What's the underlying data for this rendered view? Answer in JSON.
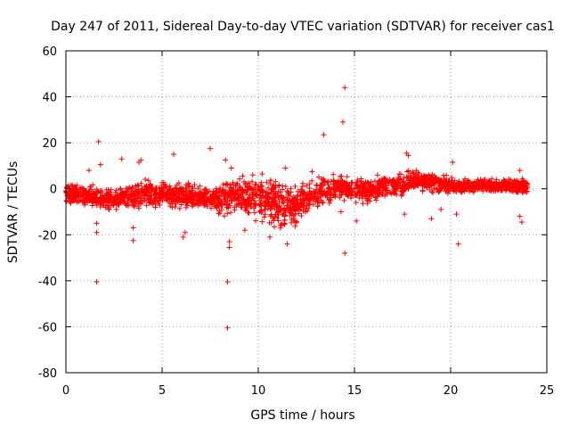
{
  "chart_data": {
    "type": "scatter",
    "title": "Day 247 of 2011, Sidereal Day-to-day VTEC variation (SDTVAR) for receiver cas1",
    "xlabel": "GPS time / hours",
    "ylabel": "SDTVAR / TECUs",
    "xlim": [
      0,
      25
    ],
    "ylim": [
      -80,
      60
    ],
    "x_ticks": [
      0,
      5,
      10,
      15,
      20,
      25
    ],
    "y_ticks": [
      -80,
      -60,
      -40,
      -20,
      0,
      20,
      40,
      60
    ],
    "grid": true,
    "marker": "+",
    "color": "#ff0000",
    "band_profile": [
      {
        "x": 0.0,
        "center": -1.5,
        "spread": 3.0
      },
      {
        "x": 1.0,
        "center": -3.0,
        "spread": 3.0
      },
      {
        "x": 2.0,
        "center": -4.5,
        "spread": 3.0
      },
      {
        "x": 3.0,
        "center": -4.0,
        "spread": 3.5
      },
      {
        "x": 4.0,
        "center": -2.5,
        "spread": 4.0
      },
      {
        "x": 5.0,
        "center": -2.5,
        "spread": 3.5
      },
      {
        "x": 6.0,
        "center": -3.0,
        "spread": 4.0
      },
      {
        "x": 7.0,
        "center": -3.5,
        "spread": 3.0
      },
      {
        "x": 8.0,
        "center": -4.0,
        "spread": 4.5
      },
      {
        "x": 9.0,
        "center": -2.5,
        "spread": 4.5
      },
      {
        "x": 10.0,
        "center": -4.0,
        "spread": 6.0
      },
      {
        "x": 11.0,
        "center": -7.0,
        "spread": 7.0
      },
      {
        "x": 12.0,
        "center": -8.0,
        "spread": 6.0
      },
      {
        "x": 12.5,
        "center": -4.0,
        "spread": 5.0
      },
      {
        "x": 13.5,
        "center": -1.0,
        "spread": 4.0
      },
      {
        "x": 14.5,
        "center": 1.0,
        "spread": 4.0
      },
      {
        "x": 15.5,
        "center": -1.0,
        "spread": 3.5
      },
      {
        "x": 16.5,
        "center": 0.5,
        "spread": 3.0
      },
      {
        "x": 17.5,
        "center": 2.0,
        "spread": 3.0
      },
      {
        "x": 18.5,
        "center": 4.0,
        "spread": 3.0
      },
      {
        "x": 19.5,
        "center": 2.0,
        "spread": 2.5
      },
      {
        "x": 20.5,
        "center": 1.0,
        "spread": 2.0
      },
      {
        "x": 21.5,
        "center": 1.5,
        "spread": 2.0
      },
      {
        "x": 22.5,
        "center": 1.5,
        "spread": 2.0
      },
      {
        "x": 23.5,
        "center": 1.0,
        "spread": 2.0
      },
      {
        "x": 24.0,
        "center": 0.5,
        "spread": 2.5
      }
    ],
    "band_x_range": [
      0.0,
      24.0
    ],
    "outliers": [
      {
        "x": 1.7,
        "y": 20.5
      },
      {
        "x": 1.6,
        "y": -40.5
      },
      {
        "x": 1.6,
        "y": -19.0
      },
      {
        "x": 1.6,
        "y": -15.0
      },
      {
        "x": 1.2,
        "y": 8.0
      },
      {
        "x": 1.8,
        "y": 10.5
      },
      {
        "x": 2.9,
        "y": 13.0
      },
      {
        "x": 3.5,
        "y": -22.5
      },
      {
        "x": 3.5,
        "y": -17.0
      },
      {
        "x": 3.9,
        "y": 12.5
      },
      {
        "x": 3.8,
        "y": 11.5
      },
      {
        "x": 5.6,
        "y": 15.0
      },
      {
        "x": 6.1,
        "y": -21.0
      },
      {
        "x": 6.2,
        "y": -19.0
      },
      {
        "x": 7.5,
        "y": 17.5
      },
      {
        "x": 8.3,
        "y": 12.5
      },
      {
        "x": 8.4,
        "y": -40.5
      },
      {
        "x": 8.4,
        "y": -60.5
      },
      {
        "x": 8.5,
        "y": -25.5
      },
      {
        "x": 8.5,
        "y": -23.0
      },
      {
        "x": 8.6,
        "y": 9.0
      },
      {
        "x": 10.6,
        "y": -21.0
      },
      {
        "x": 11.5,
        "y": -24.0
      },
      {
        "x": 11.4,
        "y": 9.0
      },
      {
        "x": 13.4,
        "y": 23.5
      },
      {
        "x": 14.5,
        "y": 44.0
      },
      {
        "x": 14.4,
        "y": 29.0
      },
      {
        "x": 14.5,
        "y": -28.0
      },
      {
        "x": 14.3,
        "y": -10.0
      },
      {
        "x": 15.1,
        "y": -14.0
      },
      {
        "x": 17.7,
        "y": 15.5
      },
      {
        "x": 17.8,
        "y": 14.5
      },
      {
        "x": 17.6,
        "y": -11.0
      },
      {
        "x": 19.0,
        "y": -13.0
      },
      {
        "x": 19.5,
        "y": -9.0
      },
      {
        "x": 20.1,
        "y": 11.5
      },
      {
        "x": 20.4,
        "y": -24.0
      },
      {
        "x": 20.3,
        "y": -11.0
      },
      {
        "x": 23.6,
        "y": 8.0
      },
      {
        "x": 23.6,
        "y": -12.0
      },
      {
        "x": 23.7,
        "y": -14.5
      },
      {
        "x": 9.3,
        "y": -18.0
      },
      {
        "x": 10.2,
        "y": 6.5
      },
      {
        "x": 12.8,
        "y": 7.5
      },
      {
        "x": 16.2,
        "y": 6.0
      }
    ]
  }
}
